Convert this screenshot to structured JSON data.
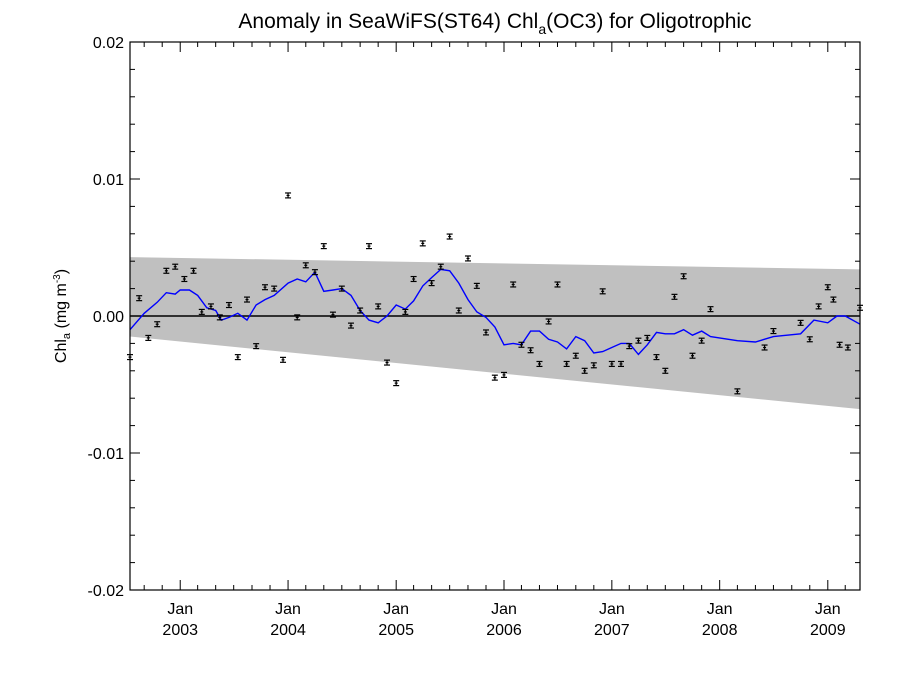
{
  "chart_data": {
    "type": "scatter",
    "title": {
      "prefix": "Anomaly in SeaWiFS(ST64) Chl",
      "sub": "a",
      "suffix": "(OC3) for Oligotrophic"
    },
    "ylabel": {
      "main": "Chl",
      "sub": "a",
      "unit_pre": " (mg m",
      "sup": "-3",
      "unit_post": ")"
    },
    "xlim": [
      "2002-07-15",
      "2009-04-20"
    ],
    "ylim": [
      -0.02,
      0.02
    ],
    "y_ticks": [
      {
        "value": 0.02,
        "label": "0.02"
      },
      {
        "value": 0.01,
        "label": "0.01"
      },
      {
        "value": 0.0,
        "label": "0.00"
      },
      {
        "value": -0.01,
        "label": "-0.01"
      },
      {
        "value": -0.02,
        "label": "-0.02"
      }
    ],
    "x_ticks": [
      {
        "date": "2003-01-01",
        "month": "Jan",
        "year": "2003"
      },
      {
        "date": "2004-01-01",
        "month": "Jan",
        "year": "2004"
      },
      {
        "date": "2005-01-01",
        "month": "Jan",
        "year": "2005"
      },
      {
        "date": "2006-01-01",
        "month": "Jan",
        "year": "2006"
      },
      {
        "date": "2007-01-01",
        "month": "Jan",
        "year": "2007"
      },
      {
        "date": "2008-01-01",
        "month": "Jan",
        "year": "2008"
      },
      {
        "date": "2009-01-01",
        "month": "Jan",
        "year": "2009"
      }
    ],
    "band": {
      "color": "#c0c0c0",
      "upper": [
        [
          "2002-07-15",
          0.0043
        ],
        [
          "2009-04-20",
          0.0034
        ]
      ],
      "lower": [
        [
          "2002-07-15",
          -0.0015
        ],
        [
          "2009-04-20",
          -0.0068
        ]
      ]
    },
    "zero_line": 0.0,
    "grid": false,
    "points": {
      "color": "#000000",
      "error": 0.00018,
      "data": [
        [
          "2002-07-15",
          -0.003
        ],
        [
          "2002-08-15",
          0.0013
        ],
        [
          "2002-09-15",
          -0.0016
        ],
        [
          "2002-10-15",
          -0.0006
        ],
        [
          "2002-11-15",
          0.0033
        ],
        [
          "2002-12-15",
          0.0036
        ],
        [
          "2003-01-15",
          0.0027
        ],
        [
          "2003-02-15",
          0.0033
        ],
        [
          "2003-03-15",
          0.0003
        ],
        [
          "2003-04-15",
          0.0007
        ],
        [
          "2003-05-15",
          -0.0001
        ],
        [
          "2003-06-15",
          0.0008
        ],
        [
          "2003-07-15",
          -0.003
        ],
        [
          "2003-08-15",
          0.0012
        ],
        [
          "2003-09-15",
          -0.0022
        ],
        [
          "2003-10-15",
          0.0021
        ],
        [
          "2003-11-15",
          0.002
        ],
        [
          "2003-12-15",
          -0.0032
        ],
        [
          "2004-01-01",
          0.0088
        ],
        [
          "2004-02-01",
          -0.0001
        ],
        [
          "2004-03-01",
          0.0037
        ],
        [
          "2004-04-01",
          0.0032
        ],
        [
          "2004-05-01",
          0.0051
        ],
        [
          "2004-06-01",
          0.0001
        ],
        [
          "2004-07-01",
          0.002
        ],
        [
          "2004-08-01",
          -0.0007
        ],
        [
          "2004-09-01",
          0.0004
        ],
        [
          "2004-10-01",
          0.0051
        ],
        [
          "2004-11-01",
          0.0007
        ],
        [
          "2004-12-01",
          -0.0034
        ],
        [
          "2005-01-01",
          -0.0049
        ],
        [
          "2005-02-01",
          0.0003
        ],
        [
          "2005-03-01",
          0.0027
        ],
        [
          "2005-04-01",
          0.0053
        ],
        [
          "2005-05-01",
          0.0024
        ],
        [
          "2005-06-01",
          0.0036
        ],
        [
          "2005-07-01",
          0.0058
        ],
        [
          "2005-08-01",
          0.0004
        ],
        [
          "2005-09-01",
          0.0042
        ],
        [
          "2005-10-01",
          0.0022
        ],
        [
          "2005-11-01",
          -0.0012
        ],
        [
          "2005-12-01",
          -0.0045
        ],
        [
          "2006-01-01",
          -0.0043
        ],
        [
          "2006-02-01",
          0.0023
        ],
        [
          "2006-03-01",
          -0.0021
        ],
        [
          "2006-04-01",
          -0.0025
        ],
        [
          "2006-05-01",
          -0.0035
        ],
        [
          "2006-06-01",
          -0.0004
        ],
        [
          "2006-07-01",
          0.0023
        ],
        [
          "2006-08-01",
          -0.0035
        ],
        [
          "2006-09-01",
          -0.0029
        ],
        [
          "2006-10-01",
          -0.004
        ],
        [
          "2006-11-01",
          -0.0036
        ],
        [
          "2006-12-01",
          0.0018
        ],
        [
          "2007-01-01",
          -0.0035
        ],
        [
          "2007-02-01",
          -0.0035
        ],
        [
          "2007-03-01",
          -0.0022
        ],
        [
          "2007-04-01",
          -0.0018
        ],
        [
          "2007-05-01",
          -0.0016
        ],
        [
          "2007-06-01",
          -0.003
        ],
        [
          "2007-07-01",
          -0.004
        ],
        [
          "2007-08-01",
          0.0014
        ],
        [
          "2007-09-01",
          0.0029
        ],
        [
          "2007-10-01",
          -0.0029
        ],
        [
          "2007-11-01",
          -0.0018
        ],
        [
          "2007-12-01",
          0.0005
        ],
        [
          "2008-03-01",
          -0.0055
        ],
        [
          "2008-06-01",
          -0.0023
        ],
        [
          "2008-07-01",
          -0.0011
        ],
        [
          "2008-10-01",
          -0.0005
        ],
        [
          "2008-11-01",
          -0.0017
        ],
        [
          "2008-12-01",
          0.0007
        ],
        [
          "2009-01-01",
          0.0021
        ],
        [
          "2009-01-20",
          0.0012
        ],
        [
          "2009-02-10",
          -0.0021
        ],
        [
          "2009-03-10",
          -0.0023
        ],
        [
          "2009-04-20",
          0.0006
        ]
      ]
    },
    "line": {
      "color": "#0000ff",
      "data": [
        [
          "2002-07-15",
          -0.001
        ],
        [
          "2002-09-01",
          0.0002
        ],
        [
          "2002-10-15",
          0.001
        ],
        [
          "2002-11-15",
          0.0017
        ],
        [
          "2002-12-15",
          0.0016
        ],
        [
          "2003-01-01",
          0.0019
        ],
        [
          "2003-02-01",
          0.0019
        ],
        [
          "2003-03-01",
          0.0015
        ],
        [
          "2003-04-01",
          0.0006
        ],
        [
          "2003-05-01",
          0.0004
        ],
        [
          "2003-05-20",
          -0.0003
        ],
        [
          "2003-06-15",
          -0.0001
        ],
        [
          "2003-07-15",
          0.0002
        ],
        [
          "2003-08-15",
          -0.0003
        ],
        [
          "2003-09-15",
          0.0008
        ],
        [
          "2003-10-15",
          0.0012
        ],
        [
          "2003-11-15",
          0.0015
        ],
        [
          "2004-01-01",
          0.0024
        ],
        [
          "2004-02-01",
          0.0027
        ],
        [
          "2004-03-01",
          0.0025
        ],
        [
          "2004-04-01",
          0.0032
        ],
        [
          "2004-05-01",
          0.0018
        ],
        [
          "2004-06-01",
          0.0019
        ],
        [
          "2004-07-01",
          0.002
        ],
        [
          "2004-08-01",
          0.0015
        ],
        [
          "2004-09-01",
          0.0004
        ],
        [
          "2004-10-01",
          -0.0003
        ],
        [
          "2004-11-01",
          -0.0005
        ],
        [
          "2004-12-01",
          0.0
        ],
        [
          "2005-01-01",
          0.0008
        ],
        [
          "2005-02-01",
          0.0005
        ],
        [
          "2005-03-01",
          0.0011
        ],
        [
          "2005-04-01",
          0.0022
        ],
        [
          "2005-05-01",
          0.0028
        ],
        [
          "2005-06-01",
          0.0034
        ],
        [
          "2005-07-01",
          0.0033
        ],
        [
          "2005-08-01",
          0.0024
        ],
        [
          "2005-09-01",
          0.0012
        ],
        [
          "2005-10-01",
          0.0003
        ],
        [
          "2005-11-01",
          -0.0001
        ],
        [
          "2005-12-01",
          -0.0008
        ],
        [
          "2006-01-01",
          -0.0021
        ],
        [
          "2006-02-01",
          -0.002
        ],
        [
          "2006-03-01",
          -0.0021
        ],
        [
          "2006-04-01",
          -0.0011
        ],
        [
          "2006-05-01",
          -0.0011
        ],
        [
          "2006-06-01",
          -0.0017
        ],
        [
          "2006-07-01",
          -0.0019
        ],
        [
          "2006-08-01",
          -0.0024
        ],
        [
          "2006-09-01",
          -0.0015
        ],
        [
          "2006-10-01",
          -0.0018
        ],
        [
          "2006-11-01",
          -0.0027
        ],
        [
          "2006-12-01",
          -0.0026
        ],
        [
          "2007-01-01",
          -0.0023
        ],
        [
          "2007-02-01",
          -0.002
        ],
        [
          "2007-03-01",
          -0.002
        ],
        [
          "2007-04-01",
          -0.0028
        ],
        [
          "2007-05-01",
          -0.0021
        ],
        [
          "2007-06-01",
          -0.0012
        ],
        [
          "2007-07-01",
          -0.0013
        ],
        [
          "2007-08-01",
          -0.0013
        ],
        [
          "2007-09-01",
          -0.001
        ],
        [
          "2007-10-01",
          -0.0014
        ],
        [
          "2007-11-01",
          -0.0011
        ],
        [
          "2007-12-01",
          -0.0015
        ],
        [
          "2008-03-01",
          -0.0018
        ],
        [
          "2008-05-01",
          -0.0019
        ],
        [
          "2008-07-01",
          -0.0015
        ],
        [
          "2008-10-01",
          -0.0013
        ],
        [
          "2008-11-15",
          -0.0003
        ],
        [
          "2009-01-01",
          -0.0005
        ],
        [
          "2009-02-01",
          0.0
        ],
        [
          "2009-03-01",
          0.0
        ],
        [
          "2009-04-20",
          -0.0006
        ]
      ]
    }
  }
}
